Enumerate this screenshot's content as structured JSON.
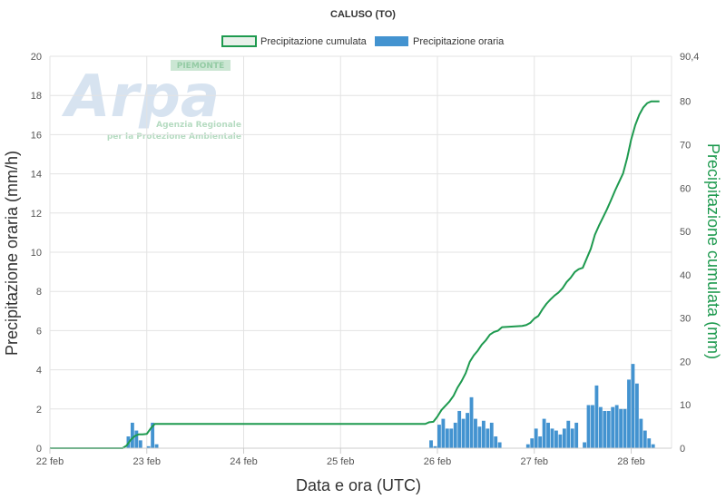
{
  "chart_data": {
    "type": "bar",
    "title": "CALUSO (TO)",
    "xlabel": "Data e ora (UTC)",
    "ylabel_left": "Precipitazione oraria (mm/h)",
    "ylabel_right": "Precipitazione cumulata (mm)",
    "ylim_left": [
      0,
      20
    ],
    "ylim_right": [
      0,
      90.4
    ],
    "yticks_left": [
      "0",
      "2",
      "4",
      "6",
      "8",
      "10",
      "12",
      "14",
      "16",
      "18",
      "20"
    ],
    "yticks_right": [
      "0",
      "10",
      "20",
      "30",
      "40",
      "50",
      "60",
      "70",
      "80",
      "90,4"
    ],
    "xticks": [
      "22 feb",
      "23 feb",
      "24 feb",
      "25 feb",
      "26 feb",
      "27 feb",
      "28 feb"
    ],
    "grid": true,
    "legend_position": "top-center",
    "legend": [
      "Precipitazione cumulata",
      "Precipitazione oraria"
    ],
    "colors": {
      "hourly": "#4393d0",
      "cumulative": "#1e9a4f",
      "grid": "#e3e3e3"
    },
    "watermark": {
      "logo_text": "Arpa",
      "region": "PIEMONTE",
      "line1": "Agenzia Regionale",
      "line2": "per la Protezione Ambientale"
    },
    "series": [
      {
        "name": "Precipitazione oraria",
        "axis": "left",
        "unit": "mm/h",
        "points": [
          [
            "22 feb 19:00",
            0.6
          ],
          [
            "22 feb 20:00",
            1.3
          ],
          [
            "22 feb 21:00",
            0.9
          ],
          [
            "22 feb 22:00",
            0.4
          ],
          [
            "23 feb 00:00",
            0.1
          ],
          [
            "23 feb 01:00",
            1.3
          ],
          [
            "23 feb 02:00",
            0.2
          ],
          [
            "25 feb 22:00",
            0.4
          ],
          [
            "25 feb 23:00",
            0.1
          ],
          [
            "26 feb 00:00",
            1.2
          ],
          [
            "26 feb 01:00",
            1.5
          ],
          [
            "26 feb 02:00",
            1.0
          ],
          [
            "26 feb 03:00",
            1.0
          ],
          [
            "26 feb 04:00",
            1.3
          ],
          [
            "26 feb 05:00",
            1.9
          ],
          [
            "26 feb 06:00",
            1.5
          ],
          [
            "26 feb 07:00",
            1.8
          ],
          [
            "26 feb 08:00",
            2.6
          ],
          [
            "26 feb 09:00",
            1.5
          ],
          [
            "26 feb 10:00",
            1.1
          ],
          [
            "26 feb 11:00",
            1.4
          ],
          [
            "26 feb 12:00",
            1.0
          ],
          [
            "26 feb 13:00",
            1.3
          ],
          [
            "26 feb 14:00",
            0.6
          ],
          [
            "26 feb 15:00",
            0.3
          ],
          [
            "26 feb 22:00",
            0.2
          ],
          [
            "26 feb 23:00",
            0.5
          ],
          [
            "27 feb 00:00",
            1.0
          ],
          [
            "27 feb 01:00",
            0.6
          ],
          [
            "27 feb 02:00",
            1.5
          ],
          [
            "27 feb 03:00",
            1.3
          ],
          [
            "27 feb 04:00",
            1.0
          ],
          [
            "27 feb 05:00",
            0.9
          ],
          [
            "27 feb 06:00",
            0.7
          ],
          [
            "27 feb 07:00",
            1.0
          ],
          [
            "27 feb 08:00",
            1.4
          ],
          [
            "27 feb 09:00",
            1.0
          ],
          [
            "27 feb 10:00",
            1.3
          ],
          [
            "27 feb 12:00",
            0.3
          ],
          [
            "27 feb 13:00",
            2.2
          ],
          [
            "27 feb 14:00",
            2.2
          ],
          [
            "27 feb 15:00",
            3.2
          ],
          [
            "27 feb 16:00",
            2.1
          ],
          [
            "27 feb 17:00",
            1.9
          ],
          [
            "27 feb 18:00",
            1.9
          ],
          [
            "27 feb 19:00",
            2.1
          ],
          [
            "27 feb 20:00",
            2.2
          ],
          [
            "27 feb 21:00",
            2.0
          ],
          [
            "27 feb 22:00",
            2.0
          ],
          [
            "27 feb 23:00",
            3.5
          ],
          [
            "28 feb 00:00",
            4.3
          ],
          [
            "28 feb 01:00",
            3.3
          ],
          [
            "28 feb 02:00",
            1.5
          ],
          [
            "28 feb 03:00",
            0.9
          ],
          [
            "28 feb 04:00",
            0.5
          ],
          [
            "28 feb 05:00",
            0.2
          ]
        ]
      },
      {
        "name": "Precipitazione cumulata",
        "axis": "right",
        "unit": "mm",
        "points": [
          [
            "22 feb 00:00",
            0.0
          ],
          [
            "22 feb 18:00",
            0.0
          ],
          [
            "22 feb 19:00",
            0.6
          ],
          [
            "22 feb 20:00",
            1.9
          ],
          [
            "22 feb 21:00",
            2.8
          ],
          [
            "22 feb 22:00",
            3.2
          ],
          [
            "22 feb 23:00",
            3.2
          ],
          [
            "23 feb 00:00",
            3.3
          ],
          [
            "23 feb 01:00",
            4.6
          ],
          [
            "23 feb 02:00",
            5.6
          ],
          [
            "25 feb 21:00",
            5.6
          ],
          [
            "25 feb 22:00",
            6.0
          ],
          [
            "25 feb 23:00",
            6.1
          ],
          [
            "26 feb 00:00",
            7.3
          ],
          [
            "26 feb 01:00",
            8.8
          ],
          [
            "26 feb 02:00",
            9.8
          ],
          [
            "26 feb 03:00",
            10.8
          ],
          [
            "26 feb 04:00",
            12.1
          ],
          [
            "26 feb 05:00",
            14.0
          ],
          [
            "26 feb 06:00",
            15.5
          ],
          [
            "26 feb 07:00",
            17.3
          ],
          [
            "26 feb 08:00",
            19.9
          ],
          [
            "26 feb 09:00",
            21.4
          ],
          [
            "26 feb 10:00",
            22.5
          ],
          [
            "26 feb 11:00",
            23.9
          ],
          [
            "26 feb 12:00",
            24.9
          ],
          [
            "26 feb 13:00",
            26.2
          ],
          [
            "26 feb 14:00",
            26.8
          ],
          [
            "26 feb 15:00",
            27.1
          ],
          [
            "26 feb 16:00",
            27.9
          ],
          [
            "26 feb 21:00",
            28.2
          ],
          [
            "26 feb 22:00",
            28.4
          ],
          [
            "26 feb 23:00",
            28.9
          ],
          [
            "27 feb 00:00",
            29.9
          ],
          [
            "27 feb 01:00",
            30.5
          ],
          [
            "27 feb 02:00",
            32.0
          ],
          [
            "27 feb 03:00",
            33.3
          ],
          [
            "27 feb 04:00",
            34.3
          ],
          [
            "27 feb 05:00",
            35.2
          ],
          [
            "27 feb 06:00",
            35.9
          ],
          [
            "27 feb 07:00",
            36.9
          ],
          [
            "27 feb 08:00",
            38.3
          ],
          [
            "27 feb 09:00",
            39.3
          ],
          [
            "27 feb 10:00",
            40.6
          ],
          [
            "27 feb 11:00",
            41.3
          ],
          [
            "27 feb 12:00",
            41.6
          ],
          [
            "27 feb 13:00",
            43.8
          ],
          [
            "27 feb 14:00",
            46.0
          ],
          [
            "27 feb 15:00",
            49.2
          ],
          [
            "27 feb 16:00",
            51.3
          ],
          [
            "27 feb 17:00",
            53.2
          ],
          [
            "27 feb 18:00",
            55.1
          ],
          [
            "27 feb 19:00",
            57.2
          ],
          [
            "27 feb 20:00",
            59.4
          ],
          [
            "27 feb 21:00",
            61.4
          ],
          [
            "27 feb 22:00",
            63.4
          ],
          [
            "27 feb 23:00",
            66.9
          ],
          [
            "28 feb 00:00",
            71.2
          ],
          [
            "28 feb 01:00",
            74.5
          ],
          [
            "28 feb 02:00",
            76.9
          ],
          [
            "28 feb 03:00",
            78.6
          ],
          [
            "28 feb 04:00",
            79.6
          ],
          [
            "28 feb 05:00",
            80.0
          ],
          [
            "28 feb 07:00",
            80.0
          ]
        ]
      }
    ]
  }
}
